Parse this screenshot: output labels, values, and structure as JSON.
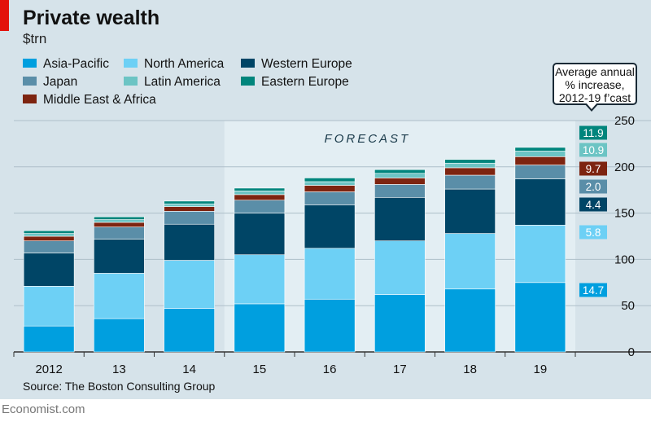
{
  "title": "Private wealth",
  "unit": "$trn",
  "forecast_label": "FORECAST",
  "callout": {
    "line1": "Average annual",
    "line2": "% increase,",
    "line3": "2012-19 f’cast"
  },
  "source": "Source: The Boston Consulting Group",
  "brand": "Economist.com",
  "colors": {
    "asia_pacific": "#009fdf",
    "north_america": "#6dd0f5",
    "western_europe": "#004566",
    "japan": "#5a8ea8",
    "latin_america": "#6cc4c4",
    "eastern_europe": "#00857c",
    "middle_east_africa": "#7d2410",
    "forecast_bg": "#e3eef3"
  },
  "chart_data": {
    "type": "bar",
    "stacked": true,
    "categories": [
      "2012",
      "13",
      "14",
      "15",
      "16",
      "17",
      "18",
      "19"
    ],
    "forecast_from": "15",
    "ylim": [
      0,
      250
    ],
    "yticks": [
      0,
      50,
      100,
      150,
      200,
      250
    ],
    "grid": true,
    "legend_position": "top-left",
    "series": [
      {
        "name": "Asia-Pacific",
        "color_key": "asia_pacific",
        "values": [
          28,
          36,
          47,
          52,
          57,
          62,
          68,
          75
        ],
        "growth": "14.7"
      },
      {
        "name": "North America",
        "color_key": "north_america",
        "values": [
          43,
          49,
          52,
          53,
          55,
          58,
          60,
          62
        ],
        "growth": "5.8"
      },
      {
        "name": "Western Europe",
        "color_key": "western_europe",
        "values": [
          36,
          37,
          39,
          45,
          47,
          47,
          48,
          50
        ],
        "growth": "4.4"
      },
      {
        "name": "Japan",
        "color_key": "japan",
        "values": [
          13,
          13,
          14,
          14,
          14,
          14,
          15,
          15
        ],
        "growth": "2.0"
      },
      {
        "name": "Middle East & Africa",
        "color_key": "middle_east_africa",
        "values": [
          5,
          5,
          5,
          6,
          7,
          7,
          8,
          9
        ],
        "growth": "9.7"
      },
      {
        "name": "Latin America",
        "color_key": "latin_america",
        "values": [
          3,
          3,
          3,
          4,
          4,
          5,
          5,
          6
        ],
        "growth": "10.9"
      },
      {
        "name": "Eastern Europe",
        "color_key": "eastern_europe",
        "values": [
          3,
          3,
          3,
          3,
          4,
          4,
          4,
          4
        ],
        "growth": "11.9"
      }
    ],
    "growth_labels_order": [
      "Eastern Europe",
      "Latin America",
      "Middle East & Africa",
      "Japan",
      "Western Europe",
      "North America",
      "Asia-Pacific"
    ]
  }
}
